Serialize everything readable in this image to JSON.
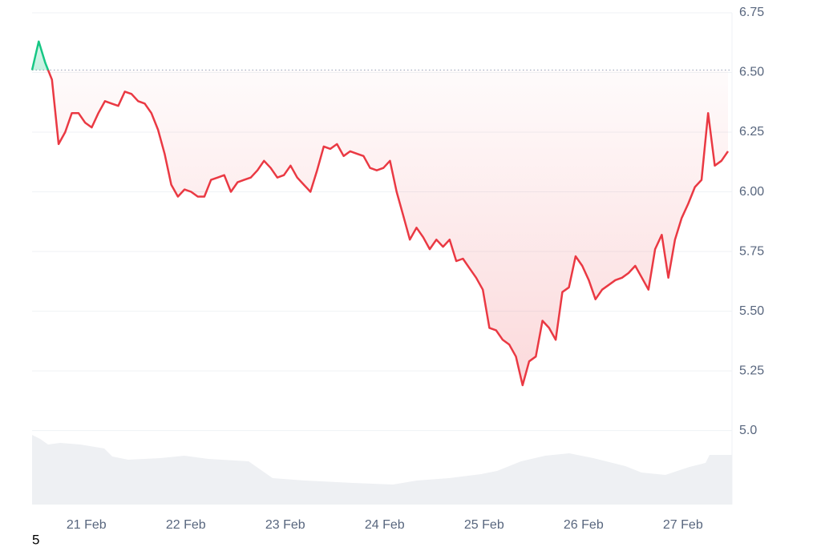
{
  "chart_data": {
    "type": "line",
    "series": [
      {
        "name": null,
        "color": "#ea3943",
        "color_above": "#16c784",
        "values": [
          6.51,
          6.63,
          6.54,
          6.47,
          6.2,
          6.25,
          6.33,
          6.33,
          6.29,
          6.27,
          6.33,
          6.38,
          6.37,
          6.36,
          6.42,
          6.41,
          6.38,
          6.37,
          6.33,
          6.26,
          6.16,
          6.03,
          5.98,
          6.01,
          6.0,
          5.98,
          5.98,
          6.05,
          6.06,
          6.07,
          6.0,
          6.04,
          6.05,
          6.06,
          6.09,
          6.13,
          6.1,
          6.06,
          6.07,
          6.11,
          6.06,
          6.03,
          6.0,
          6.09,
          6.19,
          6.18,
          6.2,
          6.15,
          6.17,
          6.16,
          6.15,
          6.1,
          6.09,
          6.1,
          6.13,
          6.0,
          5.9,
          5.8,
          5.85,
          5.81,
          5.76,
          5.8,
          5.77,
          5.8,
          5.71,
          5.72,
          5.68,
          5.64,
          5.59,
          5.43,
          5.42,
          5.38,
          5.36,
          5.31,
          5.19,
          5.29,
          5.31,
          5.46,
          5.43,
          5.38,
          5.58,
          5.6,
          5.73,
          5.69,
          5.63,
          5.55,
          5.59,
          5.61,
          5.63,
          5.64,
          5.66,
          5.69,
          5.64,
          5.59,
          5.76,
          5.82,
          5.64,
          5.8,
          5.89,
          5.95,
          6.02,
          6.05,
          6.33,
          6.11,
          6.13,
          6.17
        ]
      }
    ],
    "baseline": 6.51,
    "xlim": [
      0,
      105.6
    ],
    "xticks": [
      {
        "value": 8.2,
        "label": "21 Feb"
      },
      {
        "value": 23.2,
        "label": "22 Feb"
      },
      {
        "value": 38.2,
        "label": "23 Feb"
      },
      {
        "value": 53.2,
        "label": "24 Feb"
      },
      {
        "value": 68.2,
        "label": "25 Feb"
      },
      {
        "value": 83.2,
        "label": "26 Feb"
      },
      {
        "value": 98.2,
        "label": "27 Feb"
      }
    ],
    "ylim": [
      4.69,
      6.75
    ],
    "yticks": [
      {
        "value": 6.5,
        "label": "6.50"
      },
      6.25,
      {
        "value": 6.0,
        "label": "6.00"
      },
      6.75,
      5.75,
      {
        "value": 5.5,
        "label": "5.50"
      },
      5.25,
      {
        "value": 5.0,
        "label": "5.0"
      }
    ],
    "grid": true
  },
  "footer_note": "5"
}
